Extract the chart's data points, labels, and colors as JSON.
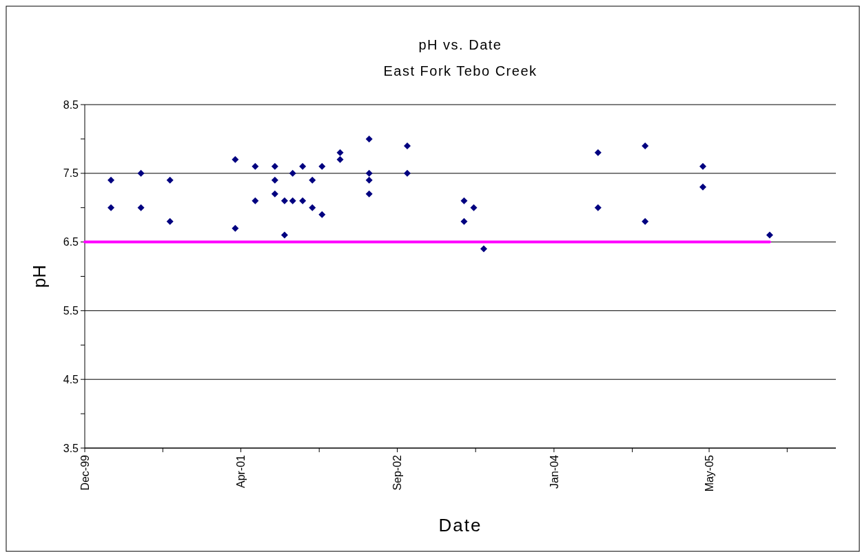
{
  "chart_data": {
    "type": "scatter",
    "title": "pH vs. Date",
    "subtitle": "East Fork Tebo Creek",
    "xlabel": "Date",
    "ylabel": "pH",
    "series": [
      {
        "color": "#000080",
        "marker": "diamond",
        "x": [
          "2000-02-27",
          "2000-02-27",
          "2000-06-02",
          "2000-06-02",
          "2000-09-03",
          "2000-09-03",
          "2001-03-31",
          "2001-03-31",
          "2001-06-03",
          "2001-06-03",
          "2001-08-05",
          "2001-08-05",
          "2001-08-05",
          "2001-09-05",
          "2001-09-05",
          "2001-10-01",
          "2001-10-01",
          "2001-11-02",
          "2001-11-02",
          "2001-12-03",
          "2001-12-03",
          "2002-01-03",
          "2002-01-03",
          "2002-03-02",
          "2002-03-02",
          "2002-06-03",
          "2002-06-03",
          "2002-06-03",
          "2002-06-03",
          "2002-10-03",
          "2002-10-03",
          "2003-04-03",
          "2003-04-03",
          "2003-05-04",
          "2003-06-05",
          "2004-06-05",
          "2004-06-05",
          "2004-11-03",
          "2004-11-03",
          "2005-05-07",
          "2005-05-07",
          "2005-12-07"
        ],
        "values": [
          7.4,
          7.0,
          7.5,
          7.0,
          7.4,
          6.8,
          7.7,
          6.7,
          7.6,
          7.1,
          7.6,
          7.4,
          7.2,
          7.1,
          6.6,
          7.5,
          7.1,
          7.6,
          7.1,
          7.4,
          7.0,
          7.6,
          6.9,
          7.8,
          7.7,
          8.0,
          7.5,
          7.4,
          7.2,
          7.9,
          7.5,
          7.1,
          6.8,
          7.0,
          6.4,
          7.8,
          7.0,
          7.9,
          6.8,
          7.6,
          7.3,
          6.6
        ]
      },
      {
        "type": "line",
        "color": "#ff00ff",
        "marker": "none",
        "x": [
          "1999-12-05",
          "2005-12-07"
        ],
        "values": [
          6.5,
          6.5
        ]
      }
    ],
    "xlim": [
      "1999-12-05",
      "2006-07-07"
    ],
    "xticks": [
      {
        "value": "1999-12-05",
        "label": "Dec-99"
      },
      {
        "value": "2000-08-11",
        "label": null
      },
      {
        "value": "2001-04-18",
        "label": "Apr-01"
      },
      {
        "value": "2001-12-25",
        "label": null
      },
      {
        "value": "2002-09-01",
        "label": "Sep-02"
      },
      {
        "value": "2003-05-10",
        "label": null
      },
      {
        "value": "2004-01-16",
        "label": "Jan-04"
      },
      {
        "value": "2004-09-23",
        "label": null
      },
      {
        "value": "2005-05-27",
        "label": "May-05"
      },
      {
        "value": "2006-02-01",
        "label": null
      }
    ],
    "ylim": [
      3.5,
      8.5
    ],
    "yticks": [
      {
        "value": 3.5,
        "label": "3.5"
      },
      {
        "value": 4,
        "label": null
      },
      {
        "value": 4.5,
        "label": "4.5"
      },
      {
        "value": 5,
        "label": null
      },
      {
        "value": 5.5,
        "label": "5.5"
      },
      {
        "value": 6,
        "label": null
      },
      {
        "value": 6.5,
        "label": "6.5"
      },
      {
        "value": 7,
        "label": null
      },
      {
        "value": 7.5,
        "label": "7.5"
      },
      {
        "value": 8,
        "label": null
      },
      {
        "value": 8.5,
        "label": "8.5"
      }
    ],
    "grid": "y"
  }
}
